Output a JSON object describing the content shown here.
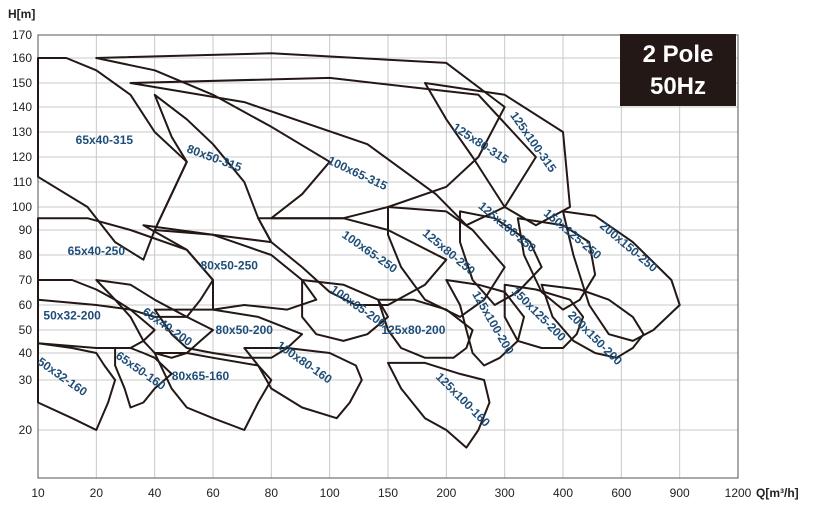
{
  "chart_data": {
    "type": "area",
    "title": "",
    "xlabel": "Q[m³/h]",
    "ylabel": "H[m]",
    "x_scale": "log",
    "y_scale": "log",
    "x_ticks": [
      10,
      20,
      40,
      60,
      80,
      100,
      150,
      200,
      300,
      400,
      600,
      900,
      1200
    ],
    "y_ticks": [
      20,
      30,
      40,
      50,
      60,
      70,
      80,
      90,
      100,
      110,
      120,
      130,
      140,
      150,
      160,
      170
    ],
    "xlim": [
      10,
      1200
    ],
    "ylim": [
      15,
      170
    ],
    "grid": true,
    "badge": {
      "line1": "2 Pole",
      "line2": "50Hz"
    },
    "colors": {
      "outline": "#231815",
      "label": "#1e4d78",
      "grid": "#c8c8c8",
      "badge_bg": "#231815"
    },
    "series": [
      {
        "name": "65x40-315",
        "label_at": [
          22,
          125
        ],
        "rot": 0,
        "outline": [
          [
            10,
            160
          ],
          [
            14,
            160
          ],
          [
            20,
            155
          ],
          [
            30,
            145
          ],
          [
            40,
            130
          ],
          [
            50,
            118
          ],
          [
            45,
            105
          ],
          [
            40,
            90
          ],
          [
            35,
            78
          ],
          [
            25,
            85
          ],
          [
            18,
            100
          ],
          [
            10,
            112
          ]
        ]
      },
      {
        "name": "80x50-315",
        "label_at": [
          60,
          118
        ],
        "rot": 20,
        "outline": [
          [
            50,
            118
          ],
          [
            40,
            90
          ],
          [
            60,
            88
          ],
          [
            80,
            85
          ],
          [
            75,
            95
          ],
          [
            70,
            110
          ],
          [
            60,
            125
          ],
          [
            50,
            135
          ],
          [
            40,
            145
          ],
          [
            45,
            128
          ]
        ]
      },
      {
        "name": "100x65-315",
        "label_at": [
          120,
          112
        ],
        "rot": 25,
        "outline": [
          [
            20,
            160
          ],
          [
            80,
            162
          ],
          [
            200,
            158
          ],
          [
            300,
            140
          ],
          [
            250,
            120
          ],
          [
            200,
            108
          ],
          [
            150,
            100
          ],
          [
            110,
            95
          ],
          [
            80,
            95
          ],
          [
            90,
            105
          ],
          [
            100,
            118
          ],
          [
            80,
            132
          ],
          [
            60,
            145
          ],
          [
            40,
            155
          ]
        ]
      },
      {
        "name": "125x80-315",
        "label_at": [
          250,
          124
        ],
        "rot": 33,
        "outline": [
          [
            30,
            150
          ],
          [
            100,
            152
          ],
          [
            250,
            145
          ],
          [
            350,
            120
          ],
          [
            300,
            100
          ],
          [
            230,
            92
          ],
          [
            190,
            105
          ],
          [
            130,
            125
          ],
          [
            70,
            142
          ]
        ]
      },
      {
        "name": "125x100-315",
        "label_at": [
          340,
          125
        ],
        "rot": 55,
        "outline": [
          [
            180,
            150
          ],
          [
            300,
            145
          ],
          [
            400,
            130
          ],
          [
            420,
            100
          ],
          [
            350,
            92
          ],
          [
            300,
            100
          ],
          [
            240,
            120
          ],
          [
            200,
            135
          ]
        ]
      },
      {
        "name": "65x40-250",
        "label_at": [
          20,
          80
        ],
        "rot": 0,
        "outline": [
          [
            10,
            95
          ],
          [
            18,
            95
          ],
          [
            30,
            90
          ],
          [
            50,
            82
          ],
          [
            60,
            70
          ],
          [
            55,
            62
          ],
          [
            50,
            55
          ],
          [
            40,
            55
          ],
          [
            30,
            58
          ],
          [
            20,
            60
          ],
          [
            10,
            62
          ]
        ]
      },
      {
        "name": "80x50-250",
        "label_at": [
          65,
          74
        ],
        "rot": 0,
        "outline": [
          [
            35,
            92
          ],
          [
            60,
            88
          ],
          [
            80,
            80
          ],
          [
            90,
            70
          ],
          [
            95,
            62
          ],
          [
            85,
            58
          ],
          [
            70,
            60
          ],
          [
            60,
            58
          ],
          [
            60,
            70
          ],
          [
            50,
            82
          ]
        ]
      },
      {
        "name": "100x65-250",
        "label_at": [
          130,
          80
        ],
        "rot": 35,
        "outline": [
          [
            75,
            95
          ],
          [
            110,
            95
          ],
          [
            150,
            90
          ],
          [
            200,
            78
          ],
          [
            180,
            68
          ],
          [
            150,
            60
          ],
          [
            120,
            60
          ],
          [
            100,
            65
          ],
          [
            90,
            75
          ],
          [
            80,
            85
          ]
        ]
      },
      {
        "name": "125x80-250",
        "label_at": [
          200,
          80
        ],
        "rot": 40,
        "outline": [
          [
            150,
            100
          ],
          [
            200,
            98
          ],
          [
            240,
            90
          ],
          [
            300,
            75
          ],
          [
            260,
            62
          ],
          [
            220,
            55
          ],
          [
            180,
            62
          ],
          [
            160,
            75
          ],
          [
            150,
            88
          ]
        ]
      },
      {
        "name": "125x100-250",
        "label_at": [
          300,
          90
        ],
        "rot": 40,
        "outline": [
          [
            220,
            98
          ],
          [
            280,
            95
          ],
          [
            340,
            85
          ],
          [
            360,
            75
          ],
          [
            320,
            65
          ],
          [
            280,
            60
          ],
          [
            240,
            70
          ],
          [
            220,
            85
          ]
        ]
      },
      {
        "name": "150x125-250",
        "label_at": [
          420,
          87
        ],
        "rot": 40,
        "outline": [
          [
            320,
            95
          ],
          [
            400,
            92
          ],
          [
            480,
            85
          ],
          [
            500,
            72
          ],
          [
            450,
            62
          ],
          [
            400,
            58
          ],
          [
            360,
            65
          ],
          [
            330,
            80
          ]
        ]
      },
      {
        "name": "200x150-250",
        "label_at": [
          620,
          82
        ],
        "rot": 40,
        "outline": [
          [
            400,
            98
          ],
          [
            500,
            96
          ],
          [
            650,
            85
          ],
          [
            850,
            70
          ],
          [
            900,
            60
          ],
          [
            750,
            50
          ],
          [
            650,
            45
          ],
          [
            550,
            48
          ],
          [
            480,
            60
          ],
          [
            430,
            80
          ]
        ]
      },
      {
        "name": "50x32-200",
        "label_at": [
          15,
          54
        ],
        "rot": 0,
        "outline": [
          [
            10,
            70
          ],
          [
            15,
            70
          ],
          [
            20,
            66
          ],
          [
            25,
            62
          ],
          [
            30,
            58
          ],
          [
            40,
            50
          ],
          [
            35,
            45
          ],
          [
            30,
            42
          ],
          [
            25,
            42
          ],
          [
            20,
            42
          ],
          [
            10,
            44
          ]
        ]
      },
      {
        "name": "65x40-200",
        "label_at": [
          43,
          50
        ],
        "rot": 35,
        "outline": [
          [
            20,
            70
          ],
          [
            30,
            68
          ],
          [
            40,
            62
          ],
          [
            50,
            55
          ],
          [
            60,
            50
          ],
          [
            55,
            45
          ],
          [
            50,
            40
          ],
          [
            45,
            38
          ],
          [
            40,
            40
          ],
          [
            35,
            45
          ],
          [
            30,
            55
          ],
          [
            25,
            62
          ]
        ]
      },
      {
        "name": "80x50-200",
        "label_at": [
          70,
          48
        ],
        "rot": 0,
        "outline": [
          [
            40,
            58
          ],
          [
            60,
            58
          ],
          [
            75,
            55
          ],
          [
            90,
            48
          ],
          [
            85,
            42
          ],
          [
            80,
            38
          ],
          [
            70,
            38
          ],
          [
            60,
            40
          ],
          [
            50,
            42
          ],
          [
            45,
            48
          ]
        ]
      },
      {
        "name": "100x65-200",
        "label_at": [
          120,
          58
        ],
        "rot": 35,
        "outline": [
          [
            90,
            70
          ],
          [
            110,
            68
          ],
          [
            140,
            62
          ],
          [
            150,
            55
          ],
          [
            130,
            48
          ],
          [
            110,
            45
          ],
          [
            95,
            48
          ],
          [
            90,
            55
          ]
        ]
      },
      {
        "name": "125x80-200",
        "label_at": [
          170,
          48
        ],
        "rot": 0,
        "outline": [
          [
            140,
            62
          ],
          [
            170,
            62
          ],
          [
            200,
            58
          ],
          [
            240,
            50
          ],
          [
            230,
            42
          ],
          [
            210,
            38
          ],
          [
            180,
            38
          ],
          [
            160,
            42
          ],
          [
            150,
            50
          ]
        ]
      },
      {
        "name": "125x100-200",
        "label_at": [
          270,
          52
        ],
        "rot": 60,
        "outline": [
          [
            200,
            70
          ],
          [
            250,
            68
          ],
          [
            300,
            65
          ],
          [
            330,
            55
          ],
          [
            320,
            45
          ],
          [
            290,
            38
          ],
          [
            260,
            35
          ],
          [
            240,
            40
          ],
          [
            230,
            50
          ],
          [
            220,
            60
          ]
        ]
      },
      {
        "name": "150x125-200",
        "label_at": [
          350,
          55
        ],
        "rot": 45,
        "outline": [
          [
            300,
            68
          ],
          [
            350,
            66
          ],
          [
            420,
            62
          ],
          [
            460,
            55
          ],
          [
            440,
            48
          ],
          [
            400,
            42
          ],
          [
            360,
            42
          ],
          [
            320,
            45
          ],
          [
            300,
            55
          ]
        ]
      },
      {
        "name": "200x150-200",
        "label_at": [
          490,
          45
        ],
        "rot": 45,
        "outline": [
          [
            360,
            68
          ],
          [
            450,
            66
          ],
          [
            550,
            62
          ],
          [
            650,
            55
          ],
          [
            700,
            48
          ],
          [
            650,
            42
          ],
          [
            580,
            38
          ],
          [
            500,
            40
          ],
          [
            430,
            45
          ],
          [
            380,
            55
          ]
        ]
      },
      {
        "name": "50x32-160",
        "label_at": [
          13,
          30
        ],
        "rot": 35,
        "outline": [
          [
            10,
            44
          ],
          [
            15,
            42
          ],
          [
            20,
            40
          ],
          [
            22,
            35
          ],
          [
            25,
            30
          ],
          [
            23,
            25
          ],
          [
            20,
            20
          ],
          [
            15,
            22
          ],
          [
            10,
            25
          ]
        ]
      },
      {
        "name": "65x50-160",
        "label_at": [
          33,
          32
        ],
        "rot": 35,
        "outline": [
          [
            25,
            42
          ],
          [
            30,
            42
          ],
          [
            35,
            40
          ],
          [
            40,
            38
          ],
          [
            45,
            32
          ],
          [
            40,
            28
          ],
          [
            35,
            25
          ],
          [
            30,
            24
          ],
          [
            28,
            28
          ],
          [
            25,
            35
          ]
        ]
      },
      {
        "name": "80x65-160",
        "label_at": [
          55,
          30
        ],
        "rot": 0,
        "outline": [
          [
            40,
            40
          ],
          [
            50,
            40
          ],
          [
            60,
            38
          ],
          [
            75,
            35
          ],
          [
            80,
            30
          ],
          [
            75,
            25
          ],
          [
            70,
            20
          ],
          [
            60,
            22
          ],
          [
            50,
            24
          ],
          [
            45,
            28
          ]
        ]
      },
      {
        "name": "100x80-160",
        "label_at": [
          90,
          35
        ],
        "rot": 35,
        "outline": [
          [
            70,
            42
          ],
          [
            85,
            42
          ],
          [
            100,
            40
          ],
          [
            120,
            35
          ],
          [
            125,
            30
          ],
          [
            115,
            25
          ],
          [
            105,
            22
          ],
          [
            90,
            24
          ],
          [
            80,
            28
          ],
          [
            75,
            35
          ]
        ]
      },
      {
        "name": "125x100-160",
        "label_at": [
          220,
          25
        ],
        "rot": 45,
        "outline": [
          [
            150,
            36
          ],
          [
            180,
            36
          ],
          [
            220,
            32
          ],
          [
            260,
            30
          ],
          [
            270,
            25
          ],
          [
            250,
            20
          ],
          [
            230,
            18
          ],
          [
            200,
            20
          ],
          [
            180,
            22
          ],
          [
            160,
            28
          ]
        ]
      }
    ]
  }
}
